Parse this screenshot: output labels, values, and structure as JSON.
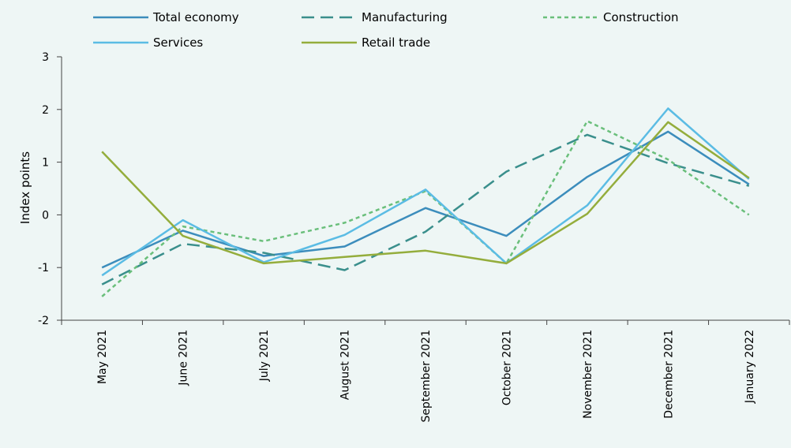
{
  "chart_data": {
    "type": "line",
    "ylabel": "Index points",
    "ylim": [
      -2,
      3
    ],
    "yticks": [
      -2,
      -1,
      0,
      1,
      2,
      3
    ],
    "ytick_labels": [
      "-2",
      "-1",
      "0",
      "1",
      "2",
      "3"
    ],
    "categories": [
      "May 2021",
      "June 2021",
      "July 2021",
      "August 2021",
      "September 2021",
      "October 2021",
      "November 2021",
      "December 2021",
      "January 2022"
    ],
    "legend_position": "top",
    "grid": false,
    "series": [
      {
        "name": "Total economy",
        "color": "#3c8dbc",
        "dash": "solid",
        "values": [
          -1.0,
          -0.3,
          -0.78,
          -0.6,
          0.13,
          -0.4,
          0.72,
          1.58,
          0.58
        ]
      },
      {
        "name": "Manufacturing",
        "color": "#3a8f8c",
        "dash": "long-dash",
        "values": [
          -1.32,
          -0.55,
          -0.72,
          -1.05,
          -0.32,
          0.82,
          1.52,
          0.98,
          0.55
        ]
      },
      {
        "name": "Construction",
        "color": "#6abf7b",
        "dash": "short-dash",
        "values": [
          -1.55,
          -0.22,
          -0.5,
          -0.15,
          0.45,
          -0.92,
          1.78,
          1.05,
          0.0
        ]
      },
      {
        "name": "Services",
        "color": "#5bbce4",
        "dash": "solid",
        "values": [
          -1.15,
          -0.1,
          -0.9,
          -0.38,
          0.48,
          -0.92,
          0.18,
          2.02,
          0.68
        ]
      },
      {
        "name": "Retail trade",
        "color": "#94ad3c",
        "dash": "solid",
        "values": [
          1.2,
          -0.4,
          -0.92,
          -0.8,
          -0.68,
          -0.92,
          0.02,
          1.76,
          0.7
        ]
      }
    ]
  }
}
